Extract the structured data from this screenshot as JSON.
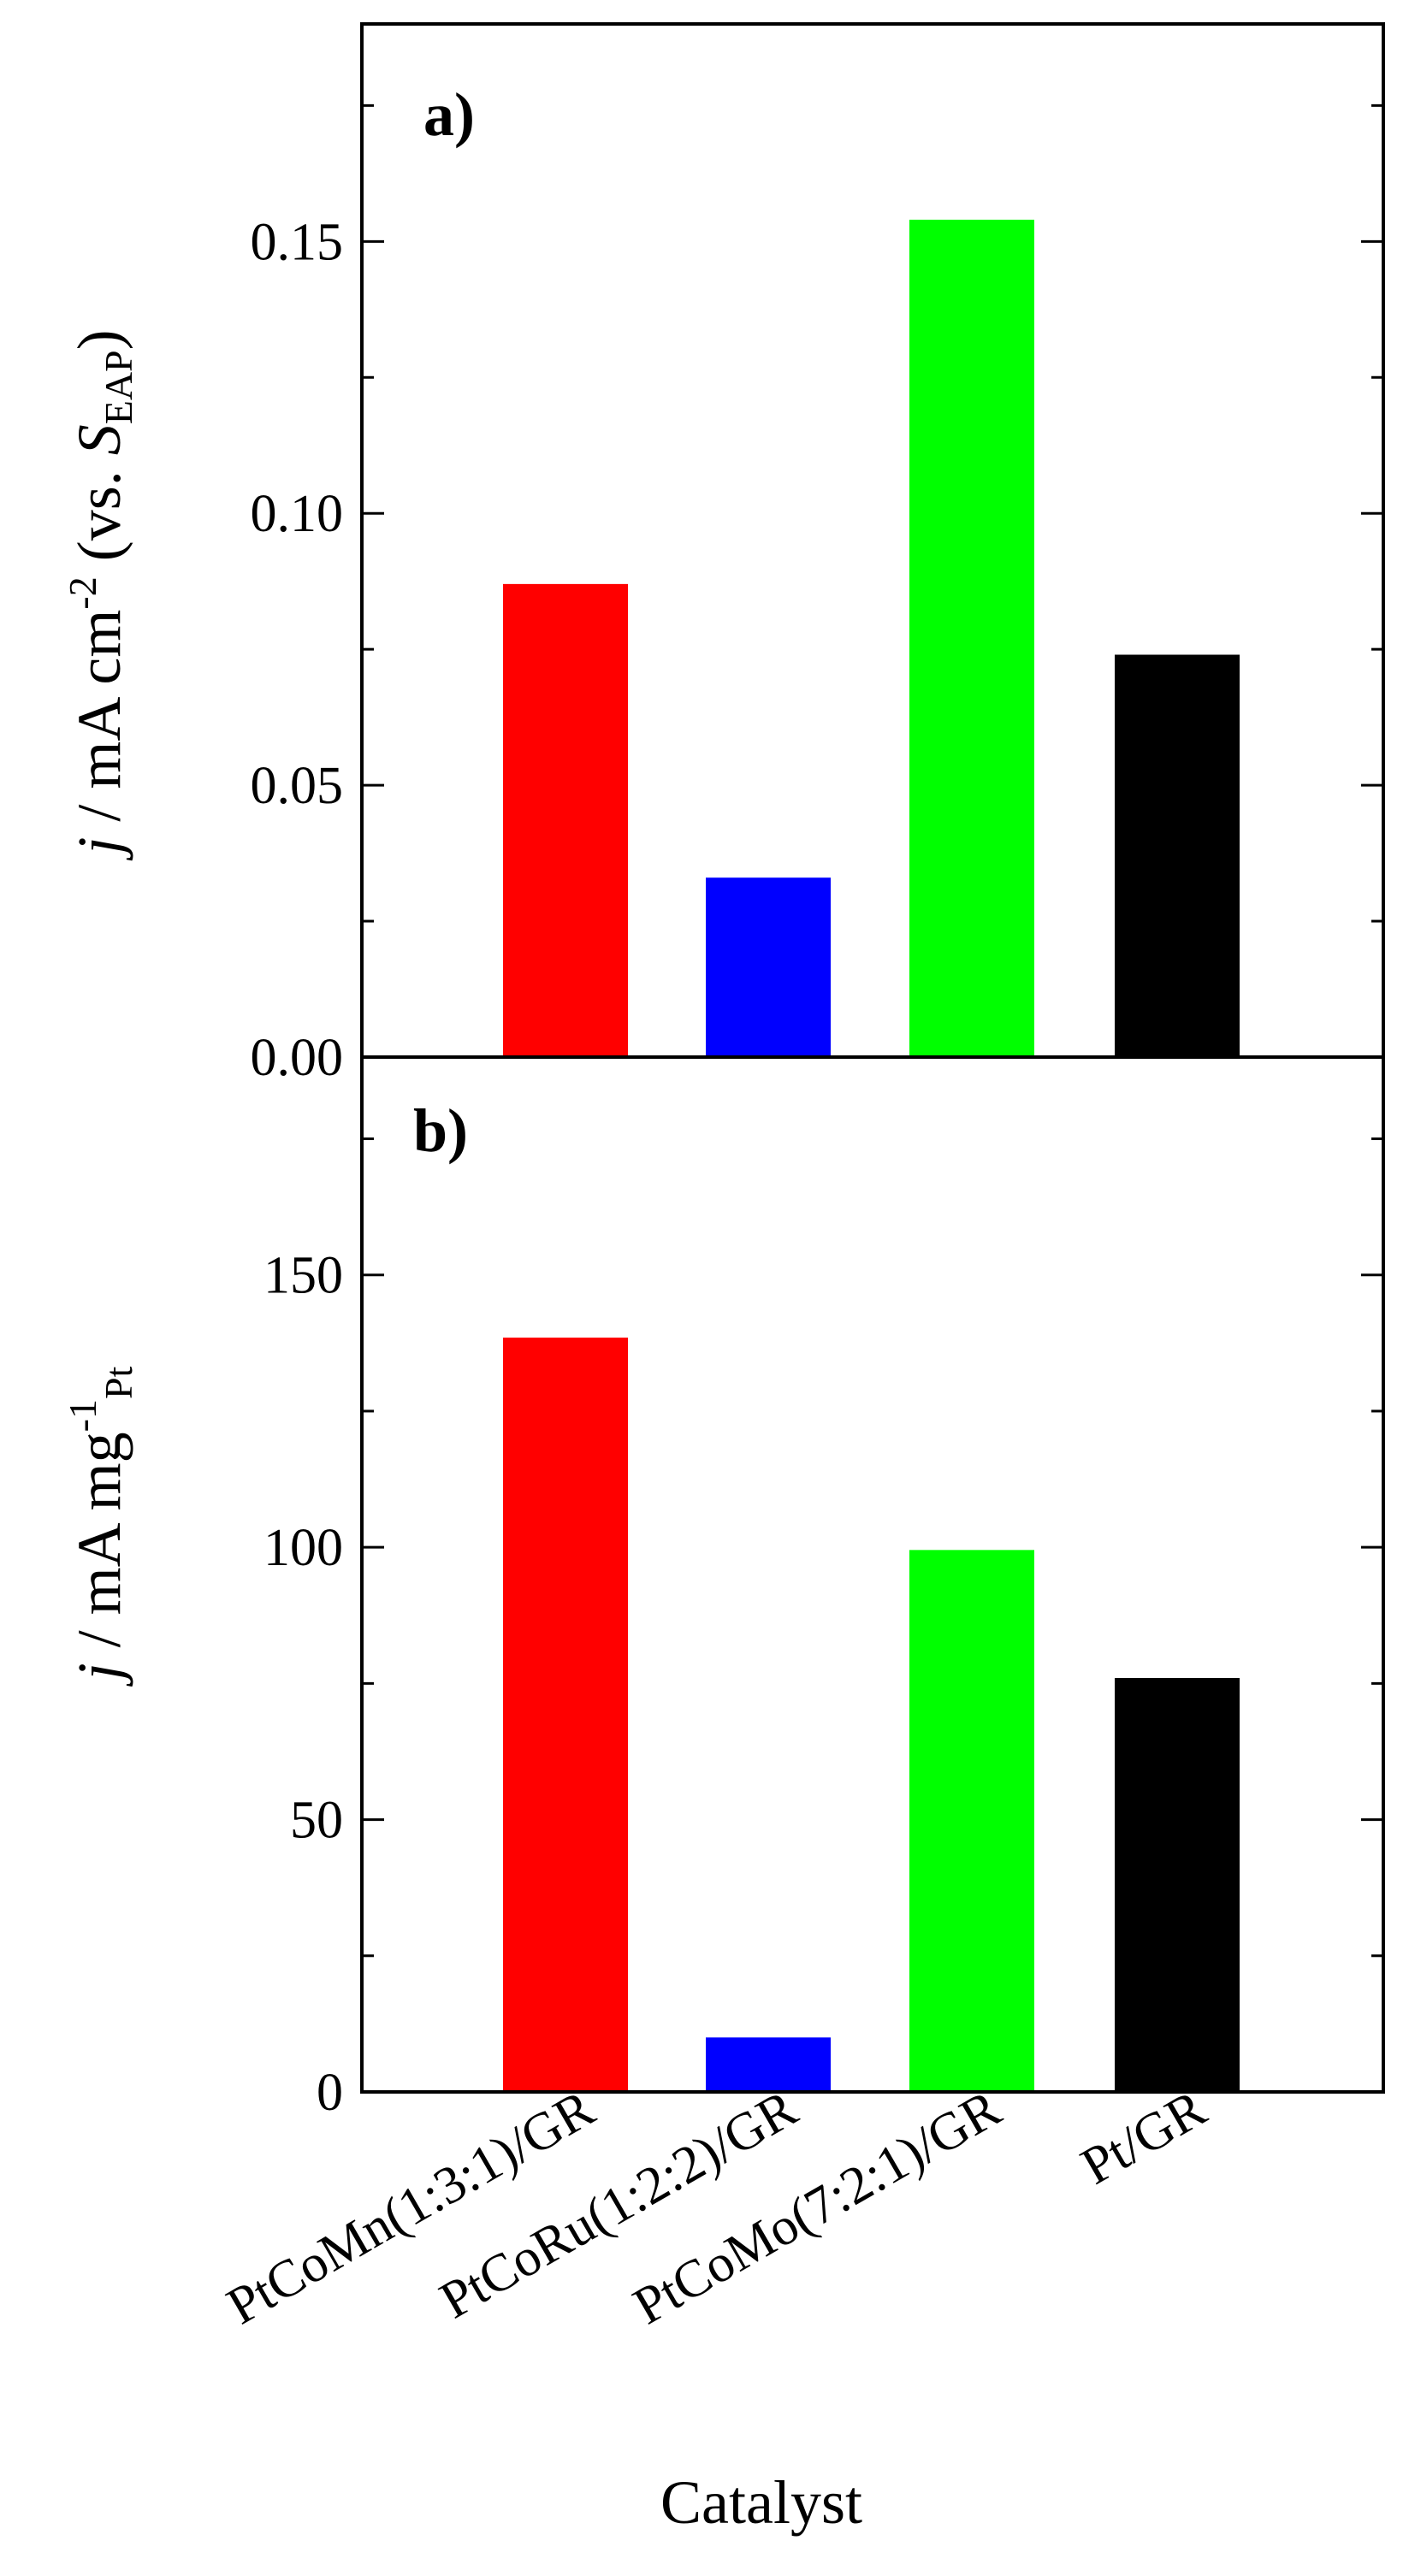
{
  "chart_data": [
    {
      "type": "bar",
      "panel_label": "a)",
      "categories": [
        "PtCoMn(1:3:1)/GR",
        "PtCoRu(1:2:2)/GR",
        "PtCoMo(7:2:1)/GR",
        "Pt/GR"
      ],
      "values": [
        0.087,
        0.033,
        0.154,
        0.074
      ],
      "colors": [
        "#ff0000",
        "#0000ff",
        "#00ff00",
        "#000000"
      ],
      "ylim": [
        0,
        0.19
      ],
      "yticks": [
        "0.00",
        "0.05",
        "0.10",
        "0.15"
      ],
      "ytick_values": [
        0,
        0.05,
        0.1,
        0.15
      ],
      "yminor_values": [
        0.025,
        0.075,
        0.125,
        0.175
      ],
      "ylabel": {
        "j": "j",
        "unit": " / mA cm",
        "exp": "-2",
        "vs": " (vs. ",
        "S": "S",
        "S_sub": "EAP",
        "close": ")"
      }
    },
    {
      "type": "bar",
      "panel_label": "b)",
      "categories": [
        "PtCoMn(1:3:1)/GR",
        "PtCoRu(1:2:2)/GR",
        "PtCoMo(7:2:1)/GR",
        "Pt/GR"
      ],
      "values": [
        138.5,
        10,
        99.5,
        76
      ],
      "colors": [
        "#ff0000",
        "#0000ff",
        "#00ff00",
        "#000000"
      ],
      "ylim": [
        0,
        190
      ],
      "yticks": [
        "0",
        "50",
        "100",
        "150"
      ],
      "ytick_values": [
        0,
        50,
        100,
        150
      ],
      "yminor_values": [
        25,
        75,
        125,
        175
      ],
      "ylabel": {
        "j": "j",
        "unit": " / mA mg",
        "exp": "-1",
        "sub": "Pt"
      }
    }
  ],
  "xlabel": "Catalyst"
}
